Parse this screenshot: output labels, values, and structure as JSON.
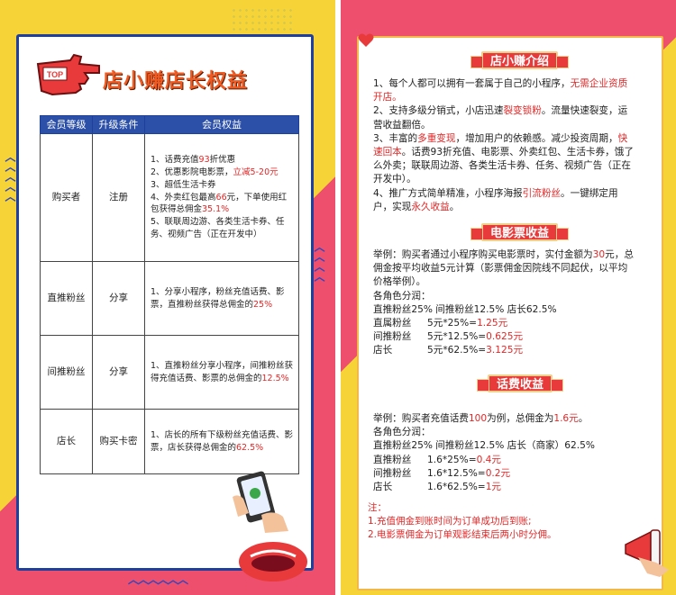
{
  "left": {
    "badge_text": "TOP",
    "title": "店小赚店长权益",
    "table": {
      "headers": [
        "会员等级",
        "升级条件",
        "会员权益"
      ],
      "rows": [
        {
          "level": "购买者",
          "condition": "注册",
          "benefits": [
            {
              "a": "1、话费充值",
              "r": "93",
              "b": "折优惠",
              "r2": "",
              "c": ""
            },
            {
              "a": "2、优惠影院电影票，",
              "r": "立减5-20元",
              "b": "",
              "r2": "",
              "c": ""
            },
            {
              "a": "3、超低生活卡券",
              "r": "",
              "b": "",
              "r2": "",
              "c": ""
            },
            {
              "a": "4、外卖红包最高",
              "r": "66",
              "b": "元，下单使用红包获得总佣金",
              "r2": "35.1%",
              "c": ""
            },
            {
              "a": "5、联联周边游、各类生活卡券、任务、视频广告（正在开发中）",
              "r": "",
              "b": "",
              "r2": "",
              "c": ""
            }
          ]
        },
        {
          "level": "直推粉丝",
          "condition": "分享",
          "benefits": [
            {
              "a": "1、分享小程序，粉丝充值话费、影票，直推粉丝获得总佣金的",
              "r": "25%",
              "b": "",
              "r2": "",
              "c": ""
            }
          ]
        },
        {
          "level": "间推粉丝",
          "condition": "分享",
          "benefits": [
            {
              "a": "1、直推粉丝分享小程序，间推粉丝获得充值话费、影票的总佣金的",
              "r": "12.5%",
              "b": "",
              "r2": "",
              "c": ""
            }
          ]
        },
        {
          "level": "店长",
          "condition": "购买卡密",
          "benefits": [
            {
              "a": "1、店长的所有下级粉丝充值话费、影票，店长获得总佣金的",
              "r": "62.5%",
              "b": "",
              "r2": "",
              "c": ""
            }
          ]
        }
      ]
    }
  },
  "right": {
    "section1": {
      "title": "店小赚介绍",
      "lines": [
        [
          {
            "t": "1、每个人都可以拥有一套属于自己的小程序，"
          },
          {
            "t": "无需企业资质开店。",
            "red": true
          }
        ],
        [
          {
            "t": "2、支持多级分销式，小店迅速"
          },
          {
            "t": "裂变锁粉",
            "red": true
          },
          {
            "t": "。流量快速裂变，运营收益翻倍。"
          }
        ],
        [
          {
            "t": "3、丰富的"
          },
          {
            "t": "多重变现",
            "red": true
          },
          {
            "t": "，增加用户的依赖感。减少投资周期，"
          },
          {
            "t": "快速回本",
            "red": true
          },
          {
            "t": "。话费93折充值、电影票、外卖红包、生活卡券，饿了么外卖；联联周边游、各类生活卡券、任务、视频广告（正在开发中）。"
          }
        ],
        [
          {
            "t": "4、推广方式简单精准，小程序海报"
          },
          {
            "t": "引流粉丝",
            "red": true
          },
          {
            "t": "。一键绑定用户，实现"
          },
          {
            "t": "永久收益",
            "red": true
          },
          {
            "t": "。"
          }
        ]
      ]
    },
    "section2": {
      "title": "电影票收益",
      "example": [
        {
          "t": "举例：购买者通过小程序购买电影票时，实付金额为"
        },
        {
          "t": "30",
          "red": true
        },
        {
          "t": "元，总佣金按平均收益5元计算（影票佣金因院线不同起伏，以平均价格举例）。"
        }
      ],
      "split_label": "各角色分润：",
      "split_summary": "直推粉丝25% 间推粉丝12.5% 店长62.5%",
      "rows": [
        {
          "role": "直属粉丝",
          "formula": "5元*25%=",
          "result": "1.25元"
        },
        {
          "role": "间推粉丝",
          "formula": "5元*12.5%=",
          "result": "0.625元"
        },
        {
          "role": "店长",
          "formula": "5元*62.5%=",
          "result": "3.125元"
        }
      ]
    },
    "section3": {
      "title": "话费收益",
      "example": [
        {
          "t": "举例：购买者充值话费"
        },
        {
          "t": "100",
          "red": true
        },
        {
          "t": "为例，总佣金为"
        },
        {
          "t": "1.6元",
          "red": true
        },
        {
          "t": "。"
        }
      ],
      "split_label": "各角色分润：",
      "split_summary": "直推粉丝25% 间推粉丝12.5% 店长（商家）62.5%",
      "rows": [
        {
          "role": "直推粉丝",
          "formula": "1.6*25%=",
          "result": "0.4元"
        },
        {
          "role": "间推粉丝",
          "formula": "1.6*12.5%=",
          "result": "0.2元"
        },
        {
          "role": "店长",
          "formula": "1.6*62.5%=",
          "result": "1元"
        }
      ]
    },
    "notes": {
      "label": "注：",
      "items": [
        "1.充值佣金到账时间为订单成功后到账;",
        "2.电影票佣金为订单观影结束后两小时分佣。"
      ]
    }
  },
  "colors": {
    "accent_red": "#e32727",
    "header_blue": "#2c50a8",
    "frame_blue": "#1f3f9c",
    "yellow_bg": "#f6d337",
    "pink_bg": "#ee4f6d"
  }
}
